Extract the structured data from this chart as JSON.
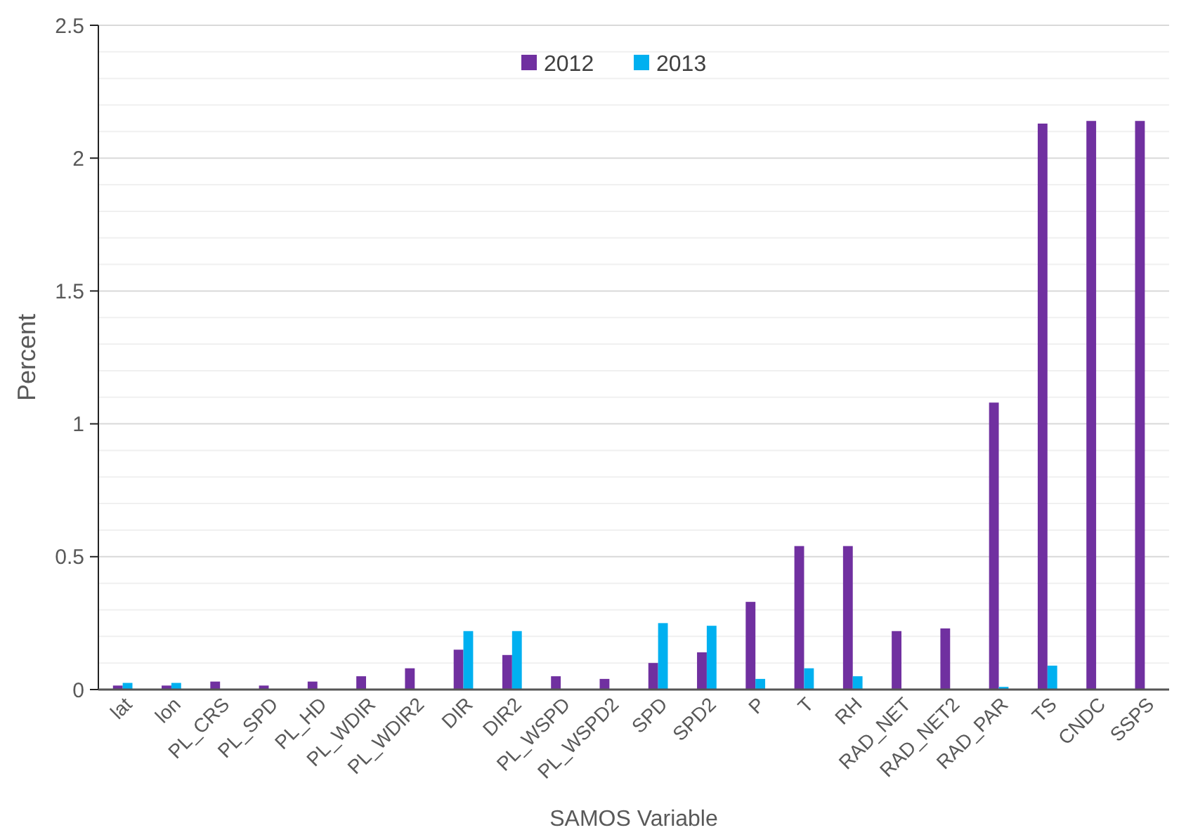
{
  "chart_data": {
    "type": "bar",
    "xlabel": "SAMOS Variable",
    "ylabel": "Percent",
    "categories": [
      "lat",
      "lon",
      "PL_CRS",
      "PL_SPD",
      "PL_HD",
      "PL_WDIR",
      "PL_WDIR2",
      "DIR",
      "DIR2",
      "PL_WSPD",
      "PL_WSPD2",
      "SPD",
      "SPD2",
      "P",
      "T",
      "RH",
      "RAD_NET",
      "RAD_NET2",
      "RAD_PAR",
      "TS",
      "CNDC",
      "SSPS"
    ],
    "series": [
      {
        "name": "2012",
        "color": "#7030a0",
        "values": [
          0.015,
          0.015,
          0.03,
          0.015,
          0.03,
          0.05,
          0.08,
          0.15,
          0.13,
          0.05,
          0.04,
          0.1,
          0.14,
          0.33,
          0.54,
          0.54,
          0.22,
          0.23,
          1.08,
          2.13,
          2.14,
          2.14
        ]
      },
      {
        "name": "2013",
        "color": "#00b0f0",
        "values": [
          0.025,
          0.025,
          null,
          null,
          null,
          null,
          null,
          0.22,
          0.22,
          null,
          null,
          0.25,
          0.24,
          0.04,
          0.08,
          0.05,
          null,
          null,
          0.01,
          0.09,
          null,
          null
        ]
      }
    ],
    "ylim": [
      0,
      2.5
    ],
    "yticks": [
      0,
      {
        "value": 0.1,
        "label": null
      },
      {
        "value": 0.2,
        "label": null
      },
      {
        "value": 0.3,
        "label": null
      },
      {
        "value": 0.4,
        "label": null
      },
      0.5,
      {
        "value": 0.6,
        "label": null
      },
      {
        "value": 0.7,
        "label": null
      },
      {
        "value": 0.8,
        "label": null
      },
      {
        "value": 0.9,
        "label": null
      },
      1,
      {
        "value": 1.1,
        "label": null
      },
      {
        "value": 1.2,
        "label": null
      },
      {
        "value": 1.3,
        "label": null
      },
      {
        "value": 1.4,
        "label": null
      },
      1.5,
      {
        "value": 1.6,
        "label": null
      },
      {
        "value": 1.7,
        "label": null
      },
      {
        "value": 1.8,
        "label": null
      },
      {
        "value": 1.9,
        "label": null
      },
      2,
      {
        "value": 2.1,
        "label": null
      },
      {
        "value": 2.2,
        "label": null
      },
      {
        "value": 2.3,
        "label": null
      },
      {
        "value": 2.4,
        "label": null
      },
      2.5
    ],
    "grid": "y",
    "legend": "top"
  }
}
